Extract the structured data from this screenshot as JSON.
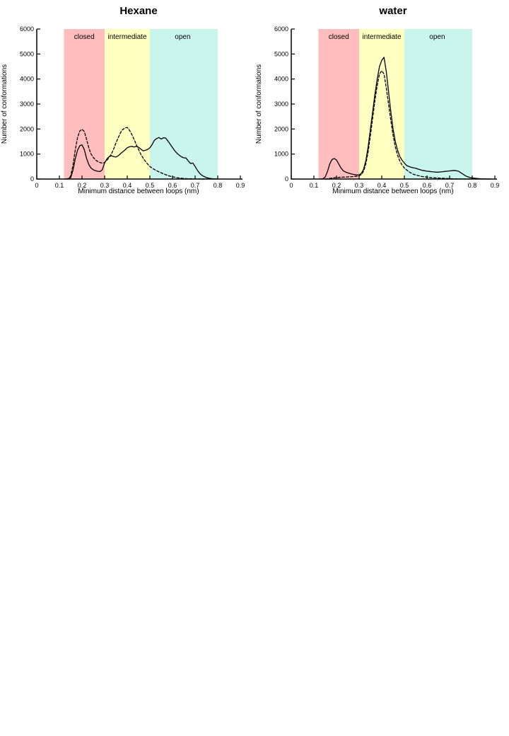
{
  "figure": {
    "background": "#ffffff"
  },
  "chart_data": [
    {
      "type": "line",
      "title": "Hexane",
      "xlabel": "Minimum distance between loops (nm)",
      "ylabel": "Number of conformations",
      "xlim": [
        0,
        0.9
      ],
      "ylim": [
        0,
        6000
      ],
      "grid": false,
      "legend": "none",
      "xticks": [
        {
          "v": 0.0,
          "label": "0"
        },
        {
          "v": 0.1,
          "label": "0.1"
        },
        {
          "v": 0.2,
          "label": "0.2"
        },
        {
          "v": 0.3,
          "label": "0.3"
        },
        {
          "v": 0.4,
          "label": "0.4"
        },
        {
          "v": 0.5,
          "label": "0.5"
        },
        {
          "v": 0.6,
          "label": "0.6"
        },
        {
          "v": 0.7,
          "label": "0.7"
        },
        {
          "v": 0.8,
          "label": "0.8"
        },
        {
          "v": 0.9,
          "label": "0.9"
        }
      ],
      "yticks": [
        {
          "v": 0,
          "label": "0"
        },
        {
          "v": 1000,
          "label": "1000"
        },
        {
          "v": 2000,
          "label": "2000"
        },
        {
          "v": 3000,
          "label": "3000"
        },
        {
          "v": 4000,
          "label": "4000"
        },
        {
          "v": 5000,
          "label": "5000"
        },
        {
          "v": 6000,
          "label": "6000"
        }
      ],
      "regions": [
        {
          "label": "closed",
          "from": 0.12,
          "to": 0.3,
          "color": "#ffbdbd",
          "label_x": 0.21
        },
        {
          "label": "intermediate",
          "from": 0.3,
          "to": 0.5,
          "color": "#ffffc2",
          "label_x": 0.4
        },
        {
          "label": "open",
          "from": 0.5,
          "to": 0.8,
          "color": "#c9f5ec",
          "label_x": 0.645
        }
      ],
      "series": [
        {
          "name": "solid",
          "style": "solid",
          "color": "#000000",
          "x": [
            0.13,
            0.14,
            0.15,
            0.16,
            0.17,
            0.18,
            0.19,
            0.2,
            0.21,
            0.22,
            0.23,
            0.24,
            0.25,
            0.26,
            0.27,
            0.28,
            0.29,
            0.3,
            0.31,
            0.32,
            0.33,
            0.34,
            0.35,
            0.36,
            0.37,
            0.38,
            0.39,
            0.4,
            0.41,
            0.42,
            0.43,
            0.44,
            0.45,
            0.46,
            0.47,
            0.48,
            0.49,
            0.5,
            0.51,
            0.52,
            0.53,
            0.54,
            0.55,
            0.56,
            0.57,
            0.58,
            0.59,
            0.6,
            0.61,
            0.62,
            0.63,
            0.64,
            0.65,
            0.66,
            0.67,
            0.68,
            0.69,
            0.7,
            0.71,
            0.72,
            0.73,
            0.74,
            0.75,
            0.76,
            0.77,
            0.78,
            0.8
          ],
          "y": [
            0,
            10,
            60,
            350,
            800,
            1150,
            1330,
            1370,
            1180,
            830,
            580,
            440,
            370,
            330,
            310,
            300,
            380,
            650,
            800,
            900,
            930,
            900,
            880,
            930,
            1010,
            1090,
            1160,
            1250,
            1290,
            1310,
            1280,
            1310,
            1270,
            1200,
            1130,
            1150,
            1180,
            1250,
            1380,
            1550,
            1620,
            1660,
            1600,
            1650,
            1640,
            1520,
            1390,
            1260,
            1130,
            1030,
            950,
            890,
            850,
            840,
            720,
            620,
            640,
            500,
            350,
            230,
            150,
            100,
            60,
            35,
            20,
            10,
            0
          ]
        },
        {
          "name": "dashed",
          "style": "dashed",
          "color": "#000000",
          "x": [
            0.13,
            0.14,
            0.15,
            0.16,
            0.17,
            0.18,
            0.19,
            0.2,
            0.21,
            0.22,
            0.23,
            0.24,
            0.25,
            0.26,
            0.27,
            0.28,
            0.29,
            0.3,
            0.31,
            0.32,
            0.33,
            0.34,
            0.35,
            0.36,
            0.37,
            0.38,
            0.39,
            0.4,
            0.41,
            0.42,
            0.43,
            0.44,
            0.45,
            0.46,
            0.47,
            0.48,
            0.49,
            0.5,
            0.52,
            0.54,
            0.56,
            0.58,
            0.6,
            0.62,
            0.64,
            0.66,
            0.68,
            0.7,
            0.72,
            0.75
          ],
          "y": [
            0,
            20,
            120,
            550,
            1150,
            1650,
            1920,
            1990,
            1900,
            1600,
            1250,
            1000,
            860,
            760,
            700,
            660,
            640,
            660,
            750,
            870,
            1000,
            1200,
            1450,
            1650,
            1850,
            1980,
            2050,
            2060,
            1950,
            1790,
            1590,
            1380,
            1180,
            990,
            840,
            710,
            600,
            500,
            380,
            290,
            210,
            140,
            90,
            55,
            30,
            18,
            10,
            5,
            2,
            0
          ]
        }
      ]
    },
    {
      "type": "line",
      "title": "water",
      "xlabel": "Minimum distance between loops (nm)",
      "ylabel": "Number of conformations",
      "xlim": [
        0,
        0.9
      ],
      "ylim": [
        0,
        6000
      ],
      "grid": false,
      "legend": "none",
      "xticks": [
        {
          "v": 0.0,
          "label": "0"
        },
        {
          "v": 0.1,
          "label": "0.1"
        },
        {
          "v": 0.2,
          "label": "0.2"
        },
        {
          "v": 0.3,
          "label": "0.3"
        },
        {
          "v": 0.4,
          "label": "0.4"
        },
        {
          "v": 0.5,
          "label": "0.5"
        },
        {
          "v": 0.6,
          "label": "0.6"
        },
        {
          "v": 0.7,
          "label": "0.7"
        },
        {
          "v": 0.8,
          "label": "0.8"
        },
        {
          "v": 0.9,
          "label": "0.9"
        }
      ],
      "yticks": [
        {
          "v": 0,
          "label": "0"
        },
        {
          "v": 1000,
          "label": "1000"
        },
        {
          "v": 2000,
          "label": "2000"
        },
        {
          "v": 3000,
          "label": "3000"
        },
        {
          "v": 4000,
          "label": "4000"
        },
        {
          "v": 5000,
          "label": "5000"
        },
        {
          "v": 6000,
          "label": "6000"
        }
      ],
      "regions": [
        {
          "label": "closed",
          "from": 0.12,
          "to": 0.3,
          "color": "#ffbdbd",
          "label_x": 0.21
        },
        {
          "label": "intermediate",
          "from": 0.3,
          "to": 0.5,
          "color": "#ffffc2",
          "label_x": 0.4
        },
        {
          "label": "open",
          "from": 0.5,
          "to": 0.8,
          "color": "#c9f5ec",
          "label_x": 0.645
        }
      ],
      "series": [
        {
          "name": "solid",
          "style": "solid",
          "color": "#000000",
          "x": [
            0.13,
            0.14,
            0.15,
            0.16,
            0.17,
            0.18,
            0.19,
            0.2,
            0.21,
            0.22,
            0.23,
            0.24,
            0.25,
            0.26,
            0.27,
            0.28,
            0.29,
            0.3,
            0.31,
            0.32,
            0.33,
            0.34,
            0.35,
            0.36,
            0.37,
            0.38,
            0.39,
            0.4,
            0.41,
            0.42,
            0.43,
            0.44,
            0.45,
            0.46,
            0.47,
            0.48,
            0.49,
            0.5,
            0.51,
            0.52,
            0.53,
            0.54,
            0.55,
            0.56,
            0.57,
            0.58,
            0.59,
            0.6,
            0.61,
            0.62,
            0.63,
            0.64,
            0.65,
            0.66,
            0.67,
            0.68,
            0.69,
            0.7,
            0.71,
            0.72,
            0.73,
            0.74,
            0.75,
            0.76,
            0.77,
            0.78,
            0.79,
            0.8,
            0.82,
            0.84,
            0.86,
            0.88
          ],
          "y": [
            0,
            15,
            80,
            300,
            600,
            780,
            820,
            760,
            600,
            440,
            330,
            280,
            250,
            220,
            195,
            175,
            160,
            170,
            230,
            400,
            750,
            1300,
            2000,
            2700,
            3400,
            4000,
            4500,
            4750,
            4870,
            4300,
            3500,
            2700,
            2000,
            1500,
            1150,
            900,
            750,
            640,
            540,
            500,
            470,
            450,
            430,
            400,
            370,
            345,
            330,
            315,
            305,
            295,
            285,
            275,
            275,
            285,
            295,
            305,
            315,
            325,
            335,
            345,
            330,
            310,
            250,
            190,
            130,
            90,
            60,
            45,
            25,
            12,
            5,
            0
          ]
        },
        {
          "name": "dashed",
          "style": "dashed",
          "color": "#000000",
          "x": [
            0.15,
            0.17,
            0.19,
            0.21,
            0.23,
            0.25,
            0.27,
            0.29,
            0.3,
            0.31,
            0.32,
            0.33,
            0.34,
            0.35,
            0.36,
            0.37,
            0.38,
            0.39,
            0.4,
            0.41,
            0.42,
            0.43,
            0.44,
            0.45,
            0.46,
            0.47,
            0.48,
            0.49,
            0.5,
            0.52,
            0.54,
            0.56,
            0.58,
            0.6,
            0.62,
            0.64,
            0.66,
            0.68,
            0.7,
            0.73,
            0.76,
            0.8
          ],
          "y": [
            0,
            25,
            50,
            65,
            75,
            85,
            95,
            110,
            130,
            180,
            320,
            620,
            1100,
            1750,
            2450,
            3150,
            3750,
            4200,
            4330,
            4200,
            3650,
            3000,
            2350,
            1750,
            1280,
            950,
            720,
            560,
            440,
            290,
            190,
            140,
            100,
            75,
            55,
            45,
            35,
            25,
            15,
            8,
            3,
            0
          ]
        }
      ]
    }
  ]
}
